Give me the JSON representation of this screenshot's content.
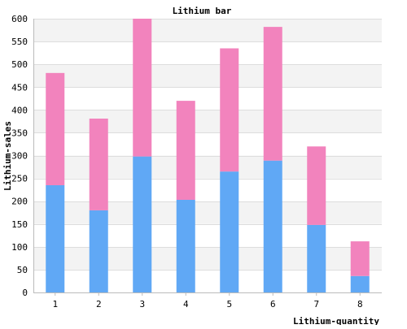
{
  "chart_data": {
    "type": "bar",
    "stacked": true,
    "title": "Lithium bar",
    "xlabel": "Lithium-quantity",
    "ylabel": "Lithium-sales",
    "categories": [
      "1",
      "2",
      "3",
      "4",
      "5",
      "6",
      "7",
      "8"
    ],
    "ylim": [
      0,
      600
    ],
    "yticks": [
      "0",
      "50",
      "100",
      "150",
      "200",
      "250",
      "300",
      "350",
      "400",
      "450",
      "500",
      "550",
      "600"
    ],
    "grid": true,
    "series": [
      {
        "values": [
          235,
          180,
          298,
          203,
          265,
          289,
          148,
          36
        ],
        "color": "#60a8f5"
      },
      {
        "values": [
          246,
          201,
          302,
          217,
          270,
          293,
          172,
          76
        ],
        "color": "#f283bd"
      }
    ],
    "band_colors": [
      "#f3f3f3",
      "#ffffff"
    ],
    "grid_color": "#dddddd"
  }
}
